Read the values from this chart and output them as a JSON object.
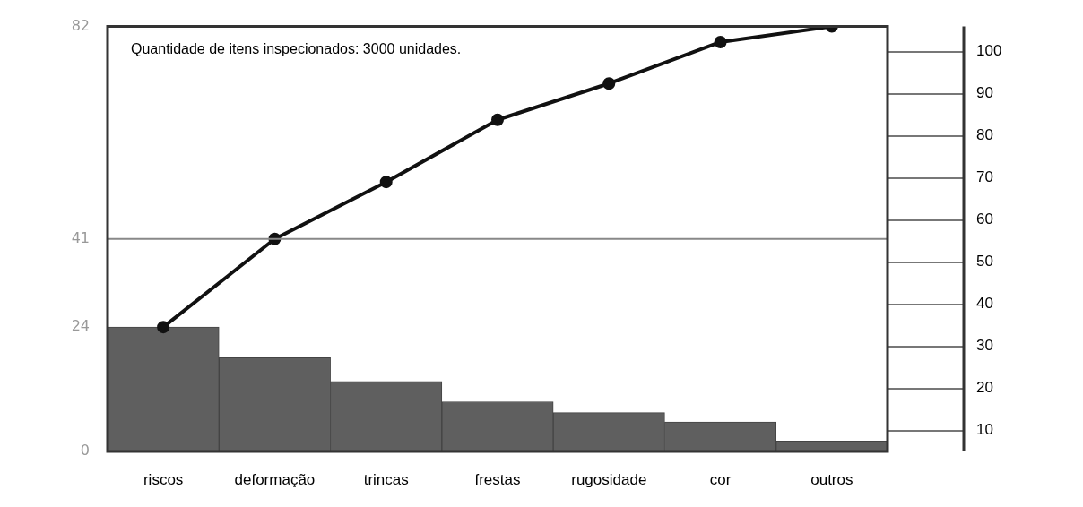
{
  "chart_data": {
    "type": "bar",
    "categories": [
      "riscos",
      "deformação",
      "trincas",
      "frestas",
      "rugosidade",
      "cor",
      "outros"
    ],
    "series": [
      {
        "color": "#5f5f5f",
        "values": [
          24,
          18.1,
          13.5,
          9.6,
          7.5,
          5.7,
          2
        ]
      },
      {
        "type": "line",
        "color": "#111111",
        "values": [
          24,
          41,
          52,
          64,
          71,
          79,
          82
        ]
      }
    ],
    "ylim": [
      0,
      82
    ],
    "yticks": [
      0,
      24,
      41,
      82
    ],
    "y2lim": [
      5,
      106
    ],
    "y2ticks": [
      10,
      20,
      30,
      40,
      50,
      60,
      70,
      80,
      90,
      100
    ],
    "ref_lines": [
      {
        "axis": "y",
        "value": 41,
        "color": "#888888"
      }
    ],
    "annotations": [
      "Quantidade de itens inspecionados: 3000 unidades."
    ],
    "marker": "circle",
    "grid": false,
    "legend": false
  }
}
